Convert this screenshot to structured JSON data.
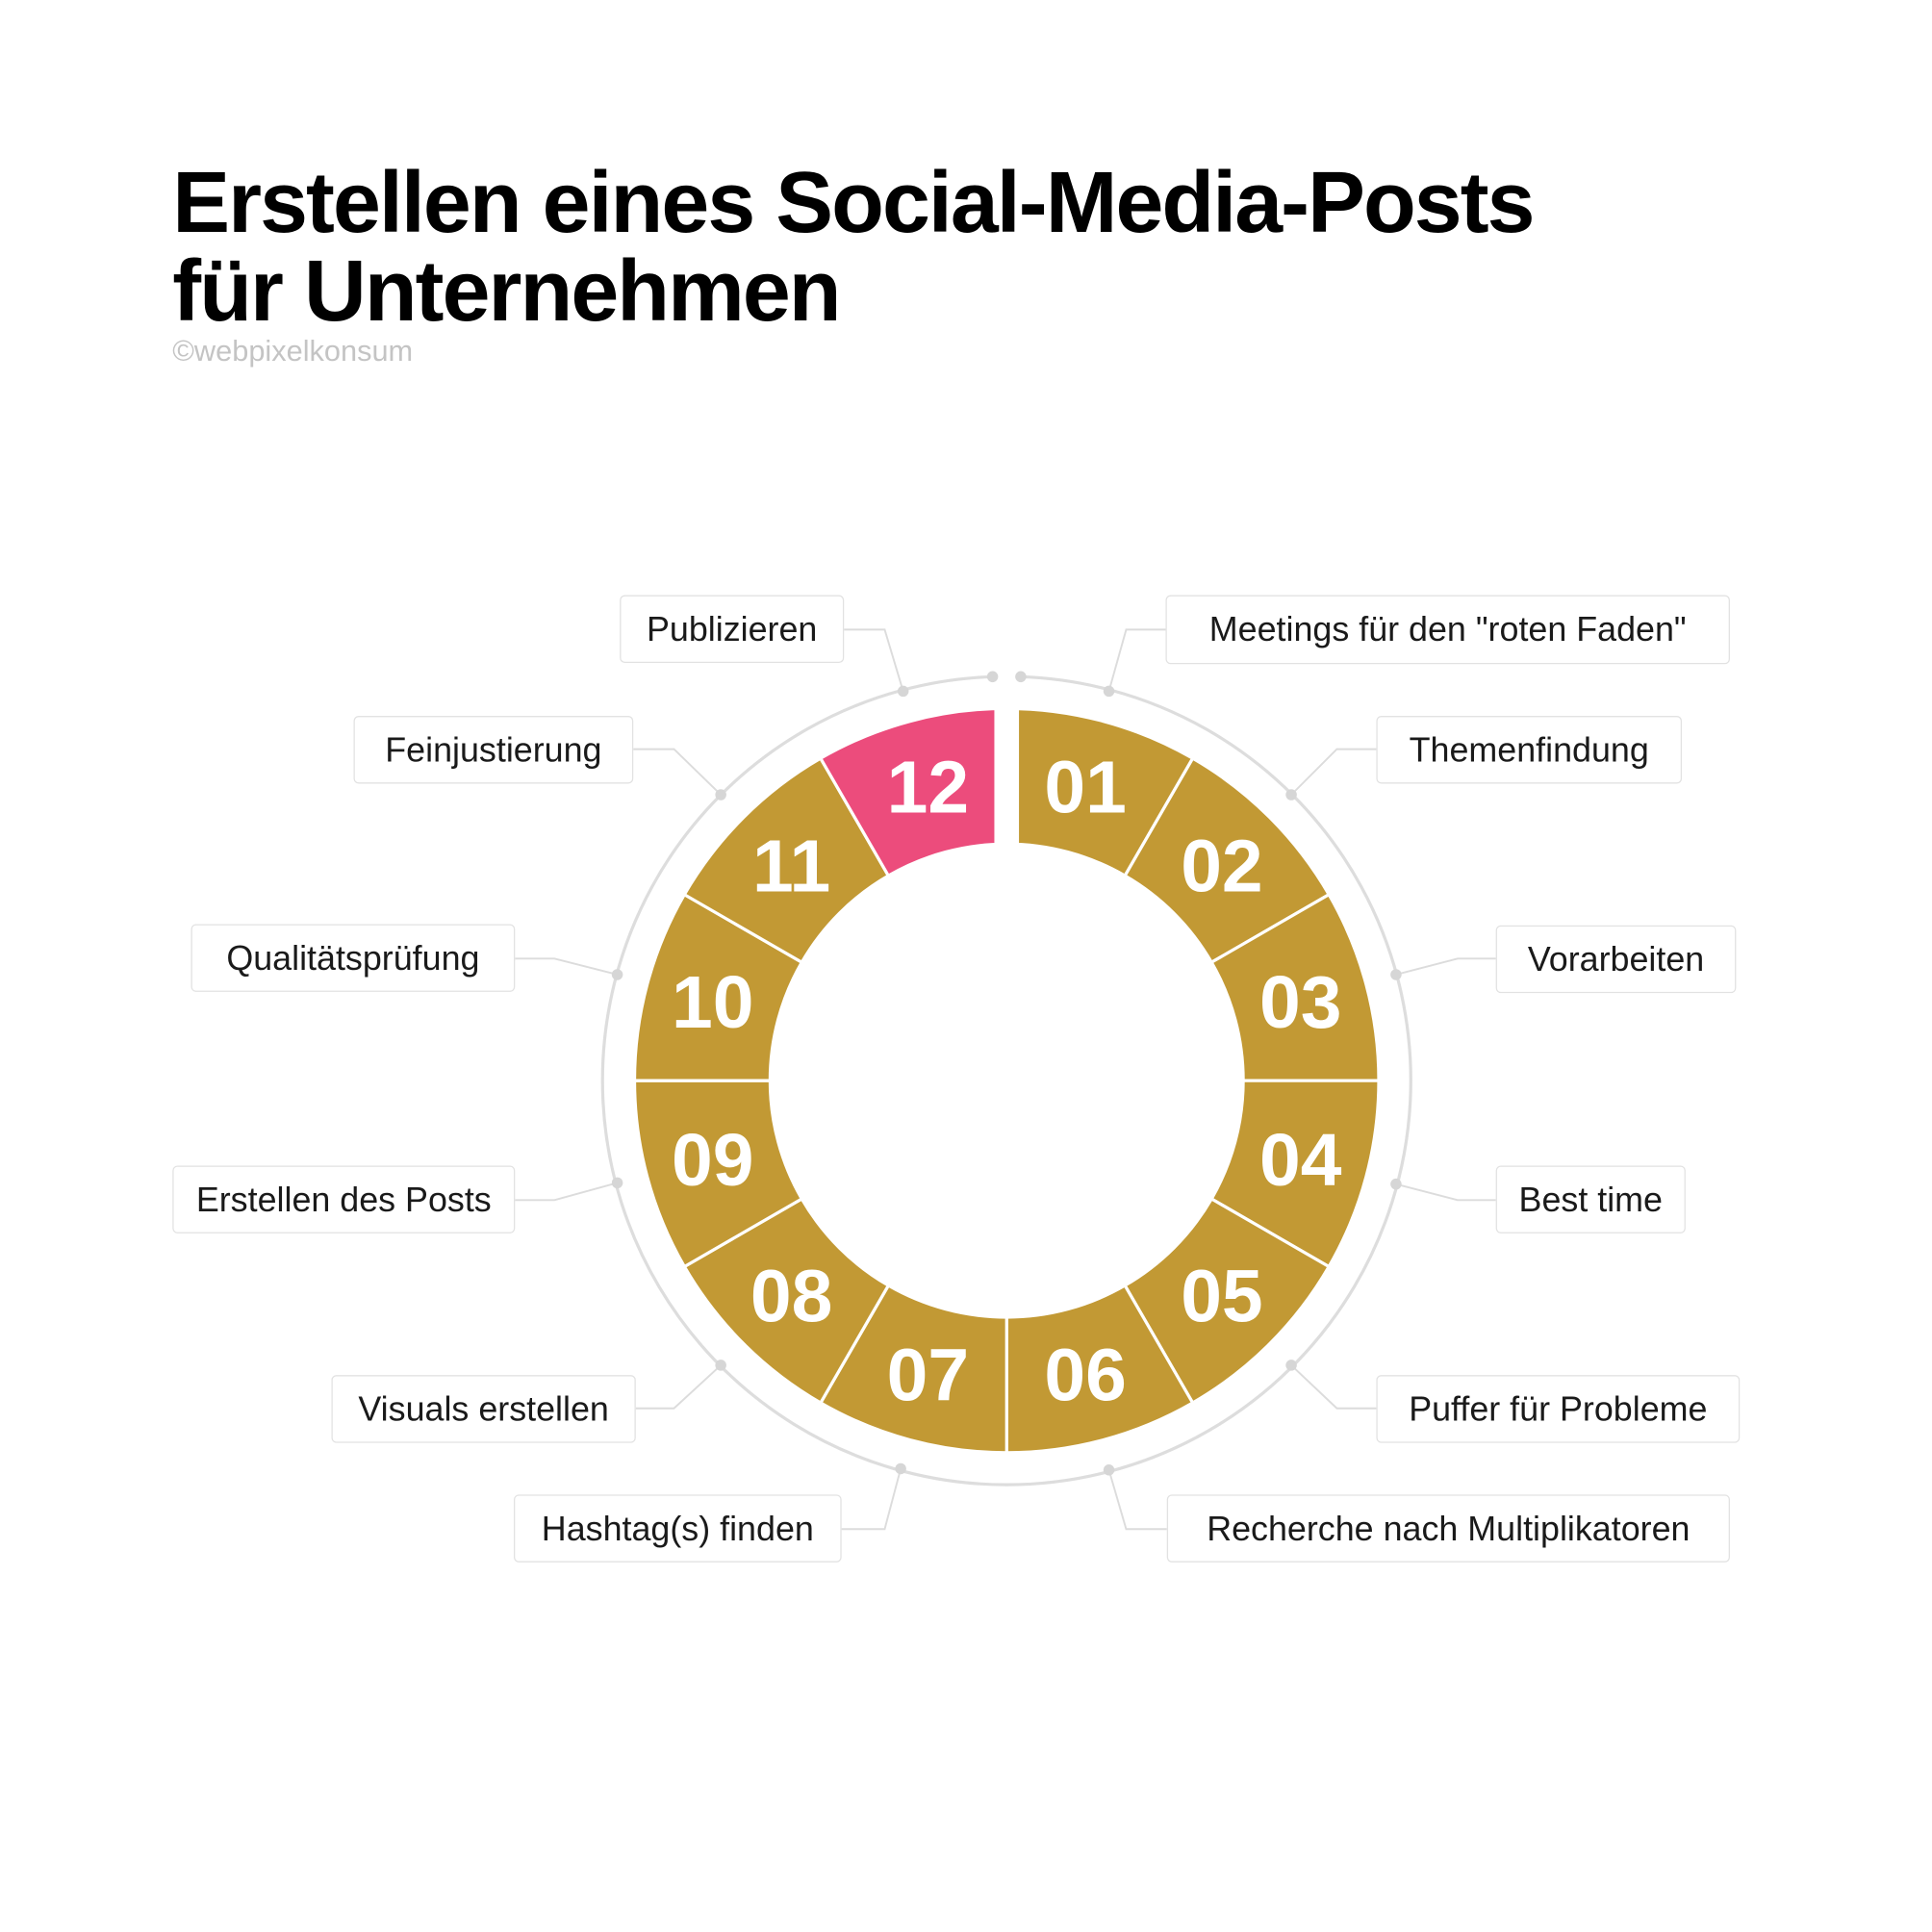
{
  "title_line1": "Erstellen eines Social-Media-Posts",
  "title_line2": "für Unternehmen",
  "copyright": "©webpixelkonsum",
  "colors": {
    "segment": "#C29934",
    "highlight": "#EC4C7C",
    "ring": "#DDDDDD"
  },
  "steps": [
    {
      "number": "01",
      "label": "Meetings für den \"roten Faden\"",
      "highlight": false
    },
    {
      "number": "02",
      "label": "Themenfindung",
      "highlight": false
    },
    {
      "number": "03",
      "label": "Vorarbeiten",
      "highlight": false
    },
    {
      "number": "04",
      "label": "Best time",
      "highlight": false
    },
    {
      "number": "05",
      "label": "Puffer für Probleme",
      "highlight": false
    },
    {
      "number": "06",
      "label": "Recherche nach Multiplikatoren",
      "highlight": false
    },
    {
      "number": "07",
      "label": "Hashtag(s) finden",
      "highlight": false
    },
    {
      "number": "08",
      "label": "Visuals erstellen",
      "highlight": false
    },
    {
      "number": "09",
      "label": "Erstellen des Posts",
      "highlight": false
    },
    {
      "number": "10",
      "label": "Qualitätsprüfung",
      "highlight": false
    },
    {
      "number": "11",
      "label": "Feinjustierung",
      "highlight": false
    },
    {
      "number": "12",
      "label": "Publizieren",
      "highlight": true
    }
  ]
}
